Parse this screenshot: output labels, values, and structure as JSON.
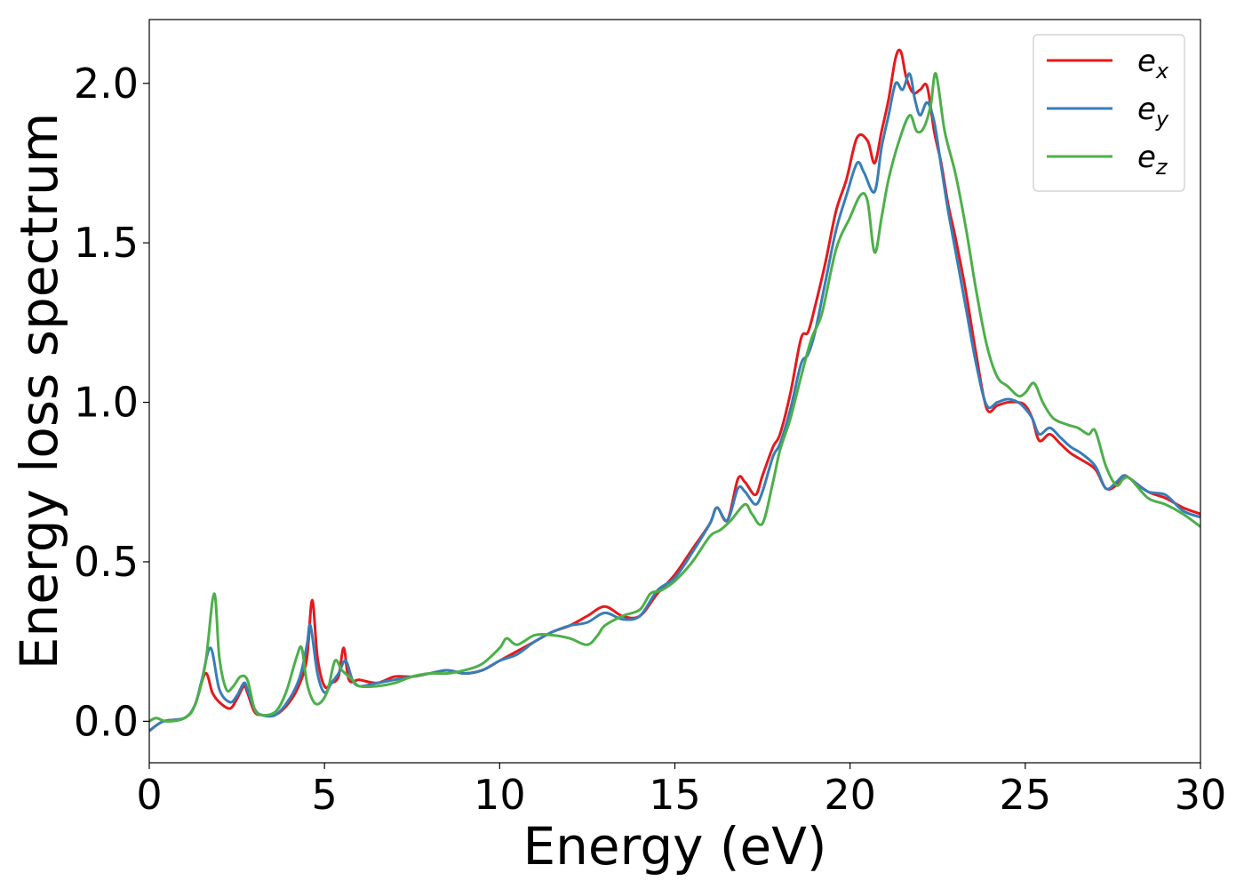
{
  "chart_data": {
    "type": "line",
    "title": "",
    "xlabel": "Energy (eV)",
    "ylabel": "Energy loss spectrum",
    "xlim": [
      0,
      30
    ],
    "ylim": [
      -0.13,
      2.2
    ],
    "xticks": [
      0,
      5,
      10,
      15,
      20,
      25,
      30
    ],
    "xtick_labels": [
      "0",
      "5",
      "10",
      "15",
      "20",
      "25",
      "30"
    ],
    "yticks": [
      0.0,
      0.5,
      1.0,
      1.5,
      2.0
    ],
    "ytick_labels": [
      "0.0",
      "0.5",
      "1.0",
      "1.5",
      "2.0"
    ],
    "grid": false,
    "legend_position": "top-right",
    "series": [
      {
        "name": "e_x",
        "label_base": "e",
        "label_sub": "x",
        "color": "#e41a1c",
        "x": [
          0,
          0.4,
          1.0,
          1.3,
          1.6,
          1.8,
          2.0,
          2.3,
          2.5,
          2.7,
          2.8,
          3.0,
          3.2,
          3.6,
          4.0,
          4.3,
          4.5,
          4.65,
          4.8,
          5.0,
          5.2,
          5.4,
          5.55,
          5.7,
          6.0,
          6.5,
          7.0,
          7.5,
          8.0,
          8.5,
          9.0,
          9.5,
          10.0,
          10.5,
          11.0,
          11.5,
          12.0,
          12.5,
          13.0,
          13.5,
          14.0,
          14.5,
          15.0,
          15.5,
          16.0,
          16.2,
          16.5,
          16.8,
          17.0,
          17.3,
          17.5,
          17.8,
          18.0,
          18.3,
          18.6,
          18.8,
          19.0,
          19.3,
          19.6,
          19.9,
          20.2,
          20.5,
          20.7,
          20.9,
          21.1,
          21.3,
          21.45,
          21.6,
          21.8,
          22.0,
          22.2,
          22.4,
          22.6,
          22.8,
          23.0,
          23.3,
          23.6,
          23.9,
          24.2,
          24.5,
          24.8,
          25.0,
          25.2,
          25.4,
          25.7,
          26.0,
          26.3,
          26.6,
          27.0,
          27.3,
          27.6,
          27.8,
          28.0,
          28.5,
          29.0,
          29.5,
          30.0
        ],
        "y": [
          -0.03,
          0.0,
          0.01,
          0.05,
          0.15,
          0.09,
          0.06,
          0.04,
          0.07,
          0.11,
          0.09,
          0.03,
          0.02,
          0.02,
          0.06,
          0.12,
          0.2,
          0.38,
          0.2,
          0.11,
          0.12,
          0.14,
          0.23,
          0.13,
          0.13,
          0.12,
          0.14,
          0.14,
          0.15,
          0.16,
          0.15,
          0.16,
          0.19,
          0.22,
          0.25,
          0.28,
          0.3,
          0.33,
          0.36,
          0.33,
          0.33,
          0.4,
          0.46,
          0.54,
          0.62,
          0.67,
          0.63,
          0.76,
          0.75,
          0.71,
          0.77,
          0.86,
          0.9,
          1.03,
          1.2,
          1.22,
          1.3,
          1.44,
          1.6,
          1.7,
          1.83,
          1.82,
          1.75,
          1.85,
          1.95,
          2.08,
          2.1,
          2.02,
          1.97,
          1.98,
          1.99,
          1.85,
          1.75,
          1.62,
          1.52,
          1.35,
          1.15,
          0.98,
          0.99,
          1.0,
          1.0,
          0.99,
          0.95,
          0.88,
          0.9,
          0.87,
          0.84,
          0.82,
          0.79,
          0.73,
          0.74,
          0.77,
          0.76,
          0.72,
          0.7,
          0.67,
          0.65
        ]
      },
      {
        "name": "e_y",
        "label_base": "e",
        "label_sub": "y",
        "color": "#377eb8",
        "x": [
          0,
          0.4,
          1.0,
          1.3,
          1.5,
          1.75,
          2.0,
          2.3,
          2.5,
          2.7,
          2.8,
          3.0,
          3.2,
          3.6,
          4.0,
          4.3,
          4.5,
          4.6,
          4.8,
          5.0,
          5.2,
          5.4,
          5.6,
          5.8,
          6.0,
          6.5,
          7.0,
          7.5,
          8.0,
          8.5,
          9.0,
          9.5,
          10.0,
          10.5,
          11.0,
          11.5,
          12.0,
          12.5,
          13.0,
          13.5,
          14.0,
          14.5,
          15.0,
          15.5,
          16.0,
          16.2,
          16.5,
          16.8,
          17.0,
          17.3,
          17.5,
          17.8,
          18.0,
          18.3,
          18.6,
          18.8,
          19.0,
          19.3,
          19.6,
          19.9,
          20.2,
          20.4,
          20.7,
          20.9,
          21.1,
          21.3,
          21.5,
          21.7,
          21.85,
          22.0,
          22.2,
          22.4,
          22.6,
          22.8,
          23.0,
          23.3,
          23.6,
          23.9,
          24.2,
          24.5,
          24.8,
          25.0,
          25.2,
          25.4,
          25.7,
          26.0,
          26.3,
          26.6,
          27.0,
          27.3,
          27.6,
          27.8,
          28.0,
          28.5,
          29.0,
          29.5,
          30.0
        ],
        "y": [
          -0.03,
          0.0,
          0.01,
          0.05,
          0.13,
          0.23,
          0.1,
          0.06,
          0.08,
          0.12,
          0.1,
          0.04,
          0.02,
          0.02,
          0.07,
          0.14,
          0.24,
          0.3,
          0.15,
          0.09,
          0.12,
          0.15,
          0.19,
          0.13,
          0.11,
          0.12,
          0.13,
          0.14,
          0.15,
          0.16,
          0.15,
          0.16,
          0.19,
          0.21,
          0.25,
          0.28,
          0.3,
          0.31,
          0.34,
          0.32,
          0.33,
          0.41,
          0.45,
          0.53,
          0.62,
          0.67,
          0.63,
          0.73,
          0.72,
          0.68,
          0.72,
          0.83,
          0.87,
          0.98,
          1.12,
          1.15,
          1.22,
          1.38,
          1.54,
          1.65,
          1.75,
          1.72,
          1.66,
          1.8,
          1.9,
          2.0,
          1.98,
          2.03,
          1.95,
          1.9,
          1.94,
          1.88,
          1.74,
          1.6,
          1.48,
          1.3,
          1.12,
          0.99,
          1.0,
          1.01,
          1.0,
          0.98,
          0.95,
          0.9,
          0.92,
          0.89,
          0.86,
          0.84,
          0.8,
          0.73,
          0.75,
          0.77,
          0.76,
          0.72,
          0.71,
          0.66,
          0.64
        ]
      },
      {
        "name": "e_z",
        "label_base": "e",
        "label_sub": "z",
        "color": "#4daf4a",
        "x": [
          0,
          0.2,
          0.5,
          1.0,
          1.3,
          1.6,
          1.85,
          2.0,
          2.2,
          2.4,
          2.6,
          2.8,
          3.0,
          3.2,
          3.6,
          3.9,
          4.2,
          4.35,
          4.5,
          4.7,
          4.9,
          5.1,
          5.3,
          5.5,
          5.8,
          6.0,
          6.5,
          7.0,
          7.5,
          8.0,
          8.5,
          9.0,
          9.5,
          10.0,
          10.2,
          10.5,
          11.0,
          11.5,
          12.0,
          12.5,
          12.8,
          13.0,
          13.5,
          14.0,
          14.3,
          14.6,
          15.0,
          15.5,
          16.0,
          16.3,
          16.6,
          17.0,
          17.2,
          17.5,
          17.8,
          18.0,
          18.3,
          18.6,
          18.9,
          19.2,
          19.6,
          20.0,
          20.3,
          20.5,
          20.7,
          20.9,
          21.1,
          21.4,
          21.7,
          21.9,
          22.1,
          22.3,
          22.45,
          22.7,
          23.0,
          23.3,
          23.6,
          23.9,
          24.2,
          24.5,
          24.8,
          25.0,
          25.25,
          25.5,
          25.8,
          26.2,
          26.5,
          26.8,
          27.0,
          27.3,
          27.6,
          27.8,
          28.0,
          28.5,
          29.0,
          29.5,
          30.0
        ],
        "y": [
          0.0,
          0.01,
          0.0,
          0.01,
          0.05,
          0.18,
          0.4,
          0.2,
          0.1,
          0.11,
          0.14,
          0.13,
          0.04,
          0.02,
          0.03,
          0.09,
          0.2,
          0.23,
          0.12,
          0.06,
          0.06,
          0.1,
          0.19,
          0.16,
          0.13,
          0.11,
          0.11,
          0.12,
          0.14,
          0.15,
          0.15,
          0.16,
          0.18,
          0.23,
          0.26,
          0.24,
          0.27,
          0.27,
          0.26,
          0.24,
          0.27,
          0.3,
          0.33,
          0.35,
          0.4,
          0.41,
          0.44,
          0.5,
          0.58,
          0.6,
          0.63,
          0.68,
          0.65,
          0.62,
          0.75,
          0.85,
          0.95,
          1.08,
          1.2,
          1.28,
          1.48,
          1.58,
          1.65,
          1.63,
          1.47,
          1.58,
          1.7,
          1.82,
          1.9,
          1.85,
          1.86,
          1.93,
          2.03,
          1.85,
          1.72,
          1.55,
          1.35,
          1.18,
          1.08,
          1.05,
          1.02,
          1.03,
          1.06,
          1.0,
          0.95,
          0.93,
          0.92,
          0.9,
          0.91,
          0.8,
          0.74,
          0.76,
          0.76,
          0.7,
          0.68,
          0.65,
          0.61
        ]
      }
    ]
  }
}
